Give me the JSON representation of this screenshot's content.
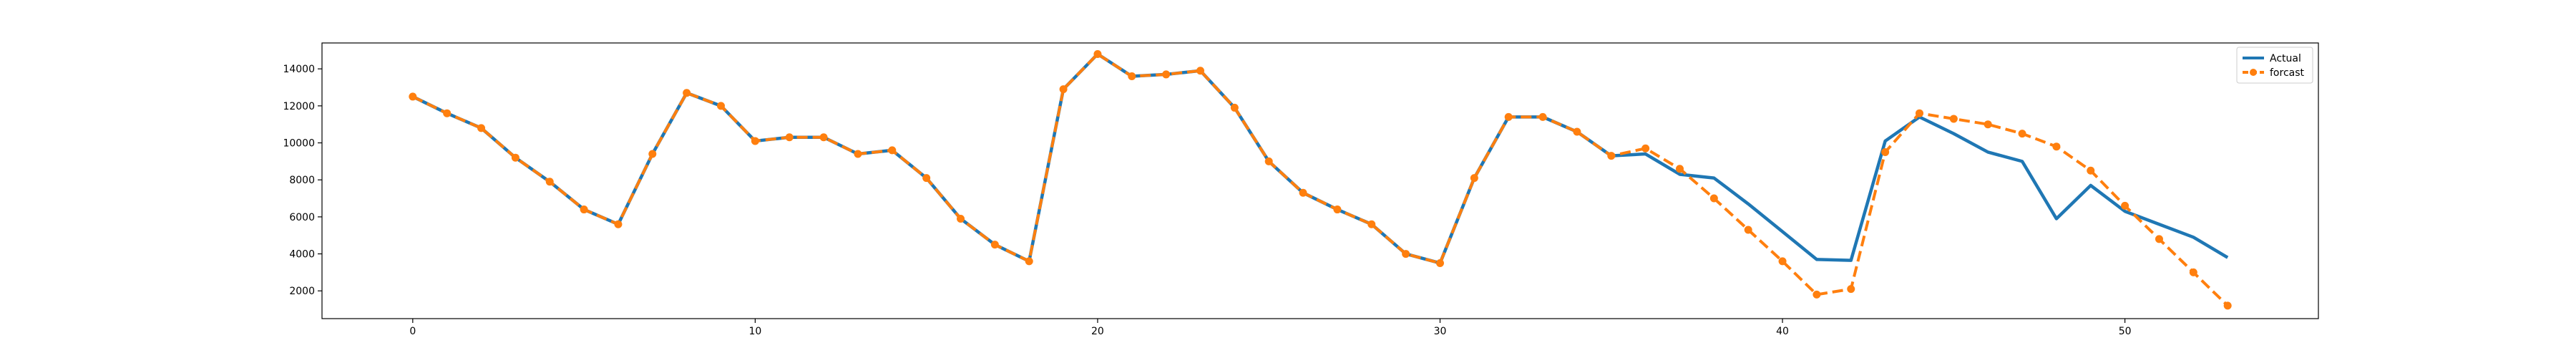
{
  "chart_data": {
    "type": "line",
    "title": "",
    "xlabel": "",
    "ylabel": "",
    "xlim": [
      -2.65,
      55.65
    ],
    "ylim": [
      500,
      15400
    ],
    "x_ticks": [
      0,
      10,
      20,
      30,
      40,
      50
    ],
    "y_ticks": [
      2000,
      4000,
      6000,
      8000,
      10000,
      12000,
      14000
    ],
    "grid": false,
    "legend_position": "top-right",
    "series": [
      {
        "name": "Actual",
        "color": "#1f77b4",
        "line_style": "solid",
        "marker": "none",
        "x": [
          0,
          1,
          2,
          3,
          4,
          5,
          6,
          7,
          8,
          9,
          10,
          11,
          12,
          13,
          14,
          15,
          16,
          17,
          18,
          19,
          20,
          21,
          22,
          23,
          24,
          25,
          26,
          27,
          28,
          29,
          30,
          31,
          32,
          33,
          34,
          35,
          36,
          37,
          38,
          39,
          40,
          41,
          42,
          43,
          44,
          45,
          46,
          47,
          48,
          49,
          50,
          51,
          52,
          53
        ],
        "values": [
          12500,
          11600,
          10800,
          9200,
          7900,
          6400,
          5600,
          9400,
          12700,
          12000,
          10100,
          10300,
          10300,
          9400,
          9600,
          8100,
          5900,
          4500,
          3600,
          12900,
          14800,
          13600,
          13700,
          13900,
          11900,
          9000,
          7300,
          6400,
          5600,
          4000,
          3500,
          8100,
          11400,
          11400,
          10600,
          9300,
          9400,
          8300,
          8100,
          6700,
          5200,
          3700,
          3650,
          10100,
          11400,
          10500,
          9500,
          9000,
          5900,
          7700,
          6300,
          5600,
          4900,
          3800
        ]
      },
      {
        "name": "forcast",
        "color": "#ff7f0e",
        "line_style": "dashed",
        "marker": "circle",
        "x": [
          0,
          1,
          2,
          3,
          4,
          5,
          6,
          7,
          8,
          9,
          10,
          11,
          12,
          13,
          14,
          15,
          16,
          17,
          18,
          19,
          20,
          21,
          22,
          23,
          24,
          25,
          26,
          27,
          28,
          29,
          30,
          31,
          32,
          33,
          34,
          35,
          36,
          37,
          38,
          39,
          40,
          41,
          42,
          43,
          44,
          45,
          46,
          47,
          48,
          49,
          50,
          51,
          52,
          53
        ],
        "values": [
          12500,
          11600,
          10800,
          9200,
          7900,
          6400,
          5600,
          9400,
          12700,
          12000,
          10100,
          10300,
          10300,
          9400,
          9600,
          8100,
          5900,
          4500,
          3600,
          12900,
          14800,
          13600,
          13700,
          13900,
          11900,
          9000,
          7300,
          6400,
          5600,
          4000,
          3500,
          8100,
          11400,
          11400,
          10600,
          9300,
          9700,
          8600,
          7000,
          5300,
          3600,
          1800,
          2100,
          9500,
          11600,
          11300,
          11000,
          10500,
          9800,
          8500,
          6600,
          4800,
          3000,
          1200
        ]
      }
    ]
  }
}
